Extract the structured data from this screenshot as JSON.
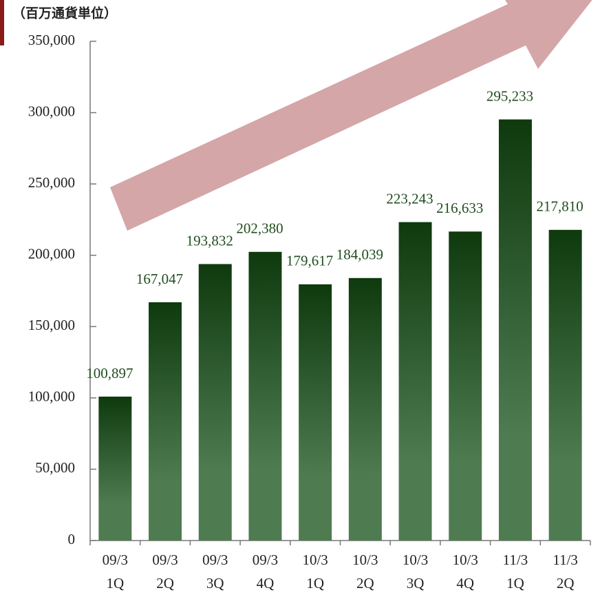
{
  "chart_data": {
    "type": "bar",
    "title": "（百万通貨単位）",
    "categories": [
      [
        "09/3",
        "1Q"
      ],
      [
        "09/3",
        "2Q"
      ],
      [
        "09/3",
        "3Q"
      ],
      [
        "09/3",
        "4Q"
      ],
      [
        "10/3",
        "1Q"
      ],
      [
        "10/3",
        "2Q"
      ],
      [
        "10/3",
        "3Q"
      ],
      [
        "10/3",
        "4Q"
      ],
      [
        "11/3",
        "1Q"
      ],
      [
        "11/3",
        "2Q"
      ]
    ],
    "values": [
      100897,
      167047,
      193832,
      202380,
      179617,
      184039,
      223243,
      216633,
      295233,
      217810
    ],
    "value_labels": [
      "100,897",
      "167,047",
      "193,832",
      "202,380",
      "179,617",
      "184,039",
      "223,243",
      "216,633",
      "295,233",
      "217,810"
    ],
    "color": [
      "#0e3a0e",
      "#4f7b51"
    ],
    "ylim": [
      0,
      350000
    ],
    "yticks": [
      0,
      {
        "value": 50000,
        "label": "50,000"
      },
      {
        "value": 100000,
        "label": "100,000"
      },
      {
        "value": 150000,
        "label": "150,000"
      },
      {
        "value": 200000,
        "label": "200,000"
      },
      {
        "value": 250000,
        "label": "250,000"
      },
      {
        "value": 300000,
        "label": "300,000"
      },
      {
        "value": 350000,
        "label": "350,000"
      }
    ],
    "grid": false
  }
}
